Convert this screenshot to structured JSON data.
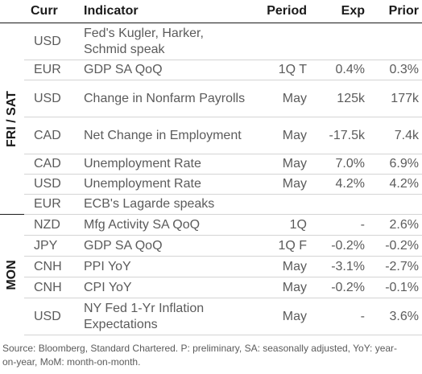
{
  "table": {
    "headers": {
      "curr": "Curr",
      "indicator": "Indicator",
      "period": "Period",
      "exp": "Exp",
      "prior": "Prior"
    },
    "groups": [
      {
        "label": "FRI / SAT",
        "rows": [
          {
            "curr": "USD",
            "indicator": "Fed's Kugler, Harker, Schmid speak",
            "period": "",
            "exp": "",
            "prior": ""
          },
          {
            "curr": "EUR",
            "indicator": "GDP SA QoQ",
            "period": "1Q T",
            "exp": "0.4%",
            "prior": "0.3%"
          },
          {
            "curr": "USD",
            "indicator": "Change in Nonfarm Payrolls",
            "period": "May",
            "exp": "125k",
            "prior": "177k"
          },
          {
            "curr": "CAD",
            "indicator": "Net Change in Employment",
            "period": "May",
            "exp": "-17.5k",
            "prior": "7.4k"
          },
          {
            "curr": "CAD",
            "indicator": "Unemployment Rate",
            "period": "May",
            "exp": "7.0%",
            "prior": "6.9%"
          },
          {
            "curr": "USD",
            "indicator": "Unemployment Rate",
            "period": "May",
            "exp": "4.2%",
            "prior": "4.2%"
          },
          {
            "curr": "EUR",
            "indicator": "ECB's Lagarde speaks",
            "period": "",
            "exp": "",
            "prior": ""
          }
        ]
      },
      {
        "label": "MON",
        "rows": [
          {
            "curr": "NZD",
            "indicator": "Mfg Activity SA QoQ",
            "period": "1Q",
            "exp": "-",
            "prior": "2.6%"
          },
          {
            "curr": "JPY",
            "indicator": "GDP SA QoQ",
            "period": "1Q F",
            "exp": "-0.2%",
            "prior": "-0.2%"
          },
          {
            "curr": "CNH",
            "indicator": "PPI YoY",
            "period": "May",
            "exp": "-3.1%",
            "prior": "-2.7%"
          },
          {
            "curr": "CNH",
            "indicator": "CPI YoY",
            "period": "May",
            "exp": "-0.2%",
            "prior": "-0.1%"
          },
          {
            "curr": "USD",
            "indicator": "NY Fed 1-Yr Inflation Expectations",
            "period": "May",
            "exp": "-",
            "prior": "3.6%"
          }
        ]
      }
    ]
  },
  "source": "Source: Bloomberg, Standard Chartered. P: preliminary, SA: seasonally adjusted, YoY: year-on-year, MoM: month-on-month."
}
